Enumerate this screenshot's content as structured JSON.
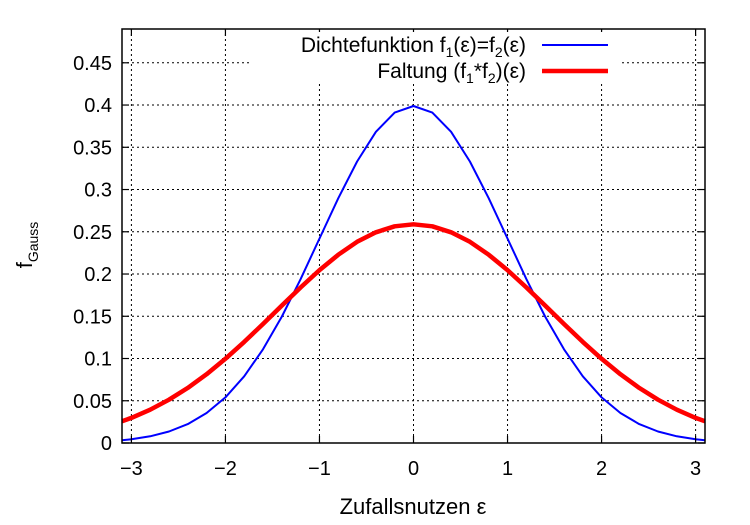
{
  "chart_data": {
    "type": "line",
    "xlabel": "Zufallsnutzen ε",
    "ylabel": {
      "base": "f",
      "sub": "Gauss"
    },
    "xlim": [
      -3.1,
      3.1
    ],
    "ylim": [
      0,
      0.49
    ],
    "x_ticks": [
      -3,
      -2,
      -1,
      0,
      1,
      2,
      3
    ],
    "x_tick_labels": [
      "−3",
      "−2",
      "−1",
      "0",
      "1",
      "2",
      "3"
    ],
    "y_ticks": [
      0,
      0.05,
      0.1,
      0.15,
      0.2,
      0.25,
      0.3,
      0.35,
      0.4,
      0.45
    ],
    "y_tick_labels": [
      "0",
      "0.05",
      "0.1",
      "0.15",
      "0.2",
      "0.25",
      "0.3",
      "0.35",
      "0.4",
      "0.45"
    ],
    "grid": true,
    "legend_position": "top-right",
    "series": [
      {
        "name": "Dichtefunktion f1(ε)=f2(ε)",
        "legend_parts": [
          {
            "t": "Dichtefunktion f"
          },
          {
            "t": "1",
            "sub": true
          },
          {
            "t": "(ε)=f"
          },
          {
            "t": "2",
            "sub": true
          },
          {
            "t": "(ε)"
          }
        ],
        "color": "#0000ff",
        "width": 2,
        "x": [
          -3.1,
          -3.0,
          -2.8,
          -2.6,
          -2.4,
          -2.2,
          -2.0,
          -1.8,
          -1.6,
          -1.4,
          -1.2,
          -1.0,
          -0.8,
          -0.6,
          -0.4,
          -0.2,
          0.0,
          0.2,
          0.4,
          0.6,
          0.8,
          1.0,
          1.2,
          1.4,
          1.6,
          1.8,
          2.0,
          2.2,
          2.4,
          2.6,
          2.8,
          3.0,
          3.1
        ],
        "y": [
          0.0033,
          0.0044,
          0.0079,
          0.0136,
          0.0224,
          0.0355,
          0.054,
          0.079,
          0.1109,
          0.1497,
          0.1942,
          0.242,
          0.2897,
          0.3332,
          0.3683,
          0.391,
          0.3989,
          0.391,
          0.3683,
          0.3332,
          0.2897,
          0.242,
          0.1942,
          0.1497,
          0.1109,
          0.079,
          0.054,
          0.0355,
          0.0224,
          0.0136,
          0.0079,
          0.0044,
          0.0033
        ]
      },
      {
        "name": "Faltung (f1*f2)(ε)",
        "legend_parts": [
          {
            "t": "Faltung (f"
          },
          {
            "t": "1",
            "sub": true
          },
          {
            "t": "*f"
          },
          {
            "t": "2",
            "sub": true
          },
          {
            "t": ")(ε)"
          }
        ],
        "color": "#ff0000",
        "width": 4.5,
        "x": [
          -3.1,
          -3.0,
          -2.8,
          -2.6,
          -2.4,
          -2.2,
          -2.0,
          -1.8,
          -1.6,
          -1.4,
          -1.2,
          -1.0,
          -0.8,
          -0.6,
          -0.4,
          -0.2,
          0.0,
          0.2,
          0.4,
          0.6,
          0.8,
          1.0,
          1.2,
          1.4,
          1.6,
          1.8,
          2.0,
          2.2,
          2.4,
          2.6,
          2.8,
          3.0,
          3.1
        ],
        "y": [
          0.0258,
          0.0297,
          0.0394,
          0.0512,
          0.0652,
          0.0814,
          0.0997,
          0.1197,
          0.1409,
          0.1627,
          0.1842,
          0.2046,
          0.2229,
          0.2381,
          0.2494,
          0.2565,
          0.2589,
          0.2565,
          0.2494,
          0.2381,
          0.2229,
          0.2046,
          0.1842,
          0.1627,
          0.1409,
          0.1197,
          0.0997,
          0.0814,
          0.0652,
          0.0512,
          0.0394,
          0.0297,
          0.0258
        ]
      }
    ]
  }
}
